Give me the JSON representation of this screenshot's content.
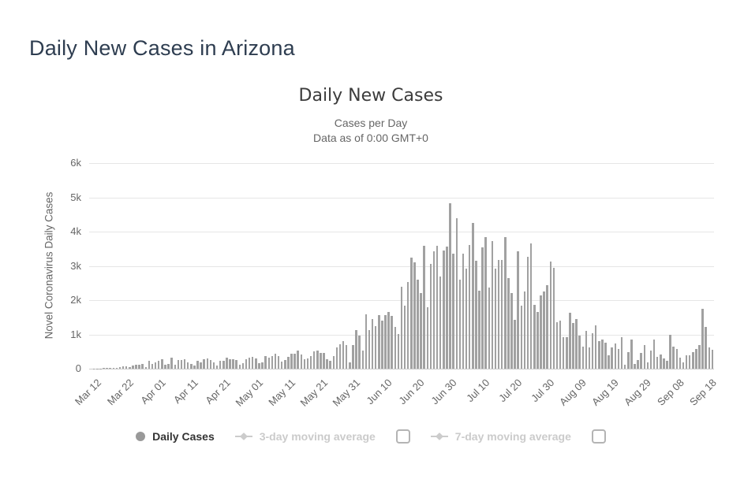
{
  "page": {
    "title": "Daily New Cases in Arizona"
  },
  "chart": {
    "title": "Daily New Cases",
    "subtitle_line1": "Cases per Day",
    "subtitle_line2": "Data as of 0:00 GMT+0",
    "y_axis_title": "Novel Coronavirus Daily Cases",
    "legend": {
      "daily": {
        "label": "Daily Cases",
        "marker": "circle-icon",
        "enabled": true
      },
      "avg3": {
        "label": "3-day moving average",
        "marker": "line-diamond-icon",
        "enabled": false,
        "checkbox_checked": false
      },
      "avg7": {
        "label": "7-day moving average",
        "marker": "line-diamond-icon",
        "enabled": false,
        "checkbox_checked": false
      }
    },
    "colors": {
      "page_title": "#2e3d50",
      "chart_title": "#3c3c3c",
      "subtitle": "#666666",
      "bar": "#a1a1a1",
      "gridline": "#e6e6e6",
      "axis_line": "#cccccc",
      "tick_label": "#666666",
      "legend_active": "#333333",
      "legend_disabled": "#cbcbcb",
      "checkbox_border": "#b4b4b4"
    }
  },
  "chart_data": {
    "type": "bar",
    "title": "Daily New Cases",
    "series_name": "Daily Cases",
    "xlabel": "",
    "ylabel": "Novel Coronavirus Daily Cases",
    "ylim": [
      0,
      6000
    ],
    "ytick_labels": [
      "0",
      "1k",
      "2k",
      "3k",
      "4k",
      "5k",
      "6k"
    ],
    "xtick_labels": [
      "Mar 12",
      "Mar 22",
      "Apr 01",
      "Apr 11",
      "Apr 21",
      "May 01",
      "May 11",
      "May 21",
      "May 31",
      "Jun 10",
      "Jun 20",
      "Jun 30",
      "Jul 10",
      "Jul 20",
      "Jul 30",
      "Aug 09",
      "Aug 19",
      "Aug 29",
      "Sep 08",
      "Sep 18"
    ],
    "xtick_day_interval": 10,
    "date_start": "Mar 12",
    "date_end": "Sep 20",
    "grid": true,
    "legend_position": "bottom",
    "months": [
      {
        "month": "Mar",
        "first_day": 12,
        "values": [
          0,
          5,
          10,
          8,
          12,
          15,
          20,
          25,
          16,
          40,
          75,
          80,
          45,
          90,
          125,
          120,
          140,
          50,
          230,
          130
        ]
      },
      {
        "month": "Apr",
        "first_day": 1,
        "values": [
          175,
          225,
          280,
          120,
          145,
          330,
          115,
          245,
          255,
          280,
          180,
          130,
          90,
          235,
          195,
          270,
          300,
          250,
          175,
          85,
          240,
          240,
          320,
          275,
          265,
          245,
          105,
          170,
          275,
          320
        ]
      },
      {
        "month": "May",
        "first_day": 1,
        "values": [
          350,
          290,
          150,
          185,
          375,
          330,
          375,
          430,
          365,
          205,
          245,
          350,
          445,
          435,
          530,
          420,
          265,
          310,
          360,
          500,
          540,
          465,
          450,
          265,
          225,
          370,
          625,
          705,
          800,
          700,
          190
        ]
      },
      {
        "month": "Jun",
        "first_day": 1,
        "values": [
          690,
          1130,
          970,
          520,
          1580,
          1120,
          1440,
          1240,
          1560,
          1410,
          1560,
          1650,
          1540,
          1230,
          1010,
          2390,
          1830,
          2520,
          3250,
          3110,
          2590,
          2200,
          3590,
          1800,
          3060,
          3430,
          3590,
          2700,
          3450,
          3560
        ]
      },
      {
        "month": "Jul",
        "first_day": 1,
        "values": [
          4830,
          3350,
          4400,
          2600,
          3350,
          2920,
          3620,
          4260,
          3160,
          2280,
          3530,
          3850,
          2360,
          3720,
          2920,
          3170,
          3170,
          3840,
          2650,
          2200,
          1430,
          3430,
          1830,
          2250,
          3270,
          3660,
          1870,
          1660,
          2140,
          2250,
          2440
        ]
      },
      {
        "month": "Aug",
        "first_day": 1,
        "values": [
          3130,
          2940,
          1360,
          1410,
          910,
          910,
          1640,
          1330,
          1450,
          970,
          640,
          1100,
          610,
          1030,
          1260,
          800,
          840,
          760,
          380,
          610,
          740,
          570,
          910,
          110,
          490,
          840,
          130,
          260,
          470,
          700,
          180
        ]
      },
      {
        "month": "Sep",
        "first_day": 1,
        "values": [
          530,
          840,
          350,
          410,
          300,
          220,
          1000,
          640,
          570,
          320,
          180,
          380,
          400,
          490,
          570,
          700,
          1750,
          1220,
          610,
          550
        ]
      }
    ]
  }
}
